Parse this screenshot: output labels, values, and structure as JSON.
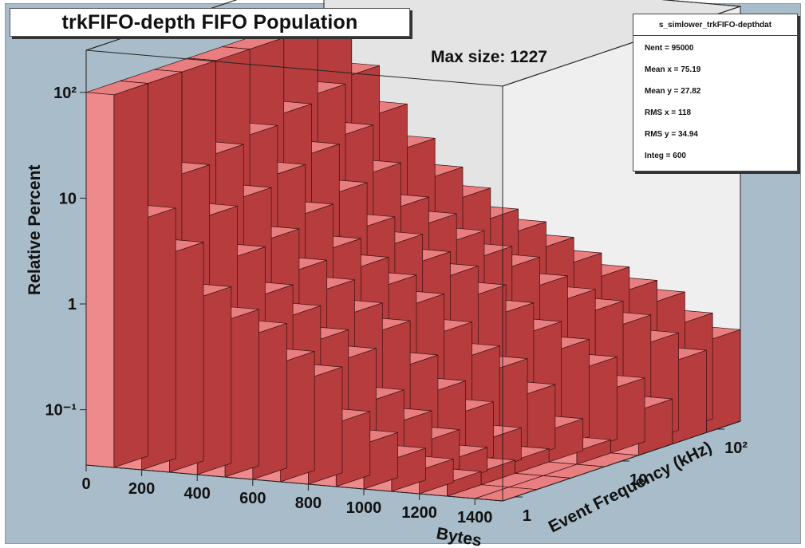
{
  "chart_data": {
    "type": "bar3d",
    "title": "trkFIFO-depth FIFO Population",
    "annotation": "Max size: 1227",
    "xlabel": "Bytes",
    "ylabel": "Event Frequency (kHz)",
    "zlabel": "Relative Percent",
    "x_ticks": [
      "0",
      "200",
      "400",
      "600",
      "800",
      "1000",
      "1200",
      "1400"
    ],
    "y_ticks": [
      "1",
      "10",
      "10²"
    ],
    "z_ticks": [
      "10⁻¹",
      "1",
      "10",
      "10²"
    ],
    "z_scale": "log",
    "y_scale": "log",
    "zlim": [
      0.03,
      250
    ],
    "x_bins": [
      0,
      100,
      200,
      300,
      400,
      500,
      600,
      700,
      800,
      900,
      1000,
      1100,
      1200,
      1300,
      1400
    ],
    "rows": [
      {
        "freq_kHz": 1.5,
        "values": [
          100,
          7,
          3.5,
          1.4,
          0.9,
          0.7,
          0.4,
          0.3,
          0.12,
          0.08,
          0.06,
          0.05,
          0.04,
          0.03,
          0.03
        ]
      },
      {
        "freq_kHz": 3,
        "values": [
          100,
          14,
          6,
          2.6,
          1.2,
          0.8,
          0.5,
          0.35,
          0.15,
          0.1,
          0.07,
          0.05,
          0.04,
          0.03,
          0.03
        ]
      },
      {
        "freq_kHz": 6,
        "values": [
          100,
          17,
          7,
          3,
          1.6,
          1.1,
          0.7,
          0.5,
          0.25,
          0.15,
          0.1,
          0.06,
          0.04,
          0.03,
          0.03
        ]
      },
      {
        "freq_kHz": 12,
        "values": [
          100,
          20,
          9,
          4,
          2,
          1.4,
          1,
          0.7,
          0.4,
          0.25,
          0.2,
          0.12,
          0.06,
          0.04,
          0.03
        ]
      },
      {
        "freq_kHz": 25,
        "values": [
          100,
          25,
          11,
          5,
          2.5,
          1.8,
          1.3,
          1,
          0.7,
          0.5,
          0.35,
          0.25,
          0.18,
          0.12,
          0.08
        ]
      },
      {
        "freq_kHz": 50,
        "values": [
          100,
          30,
          13,
          6,
          3,
          2.2,
          1.6,
          1.2,
          1,
          0.7,
          0.55,
          0.45,
          0.35,
          0.25,
          0.18
        ]
      },
      {
        "freq_kHz": 100,
        "values": [
          100,
          35,
          16,
          8,
          4.5,
          3,
          2,
          1.6,
          1.2,
          0.9,
          0.7,
          0.55,
          0.45,
          0.3,
          0.22
        ]
      }
    ],
    "colors": {
      "bar_top": "#e87e7f",
      "bar_front": "#ee8a8b",
      "bar_side": "#b63c3d",
      "background": "#a9bcca",
      "wall": "#e4e4e4"
    }
  },
  "stats": {
    "name": "s_simlower_trkFIFO-depthdat",
    "nent": "Nent = 95000",
    "mean_x": "Mean x = 75.19",
    "mean_y": "Mean y = 27.82",
    "rms_x": "RMS x = 118",
    "rms_y": "RMS y = 34.94",
    "integ": "Integ = 600"
  }
}
